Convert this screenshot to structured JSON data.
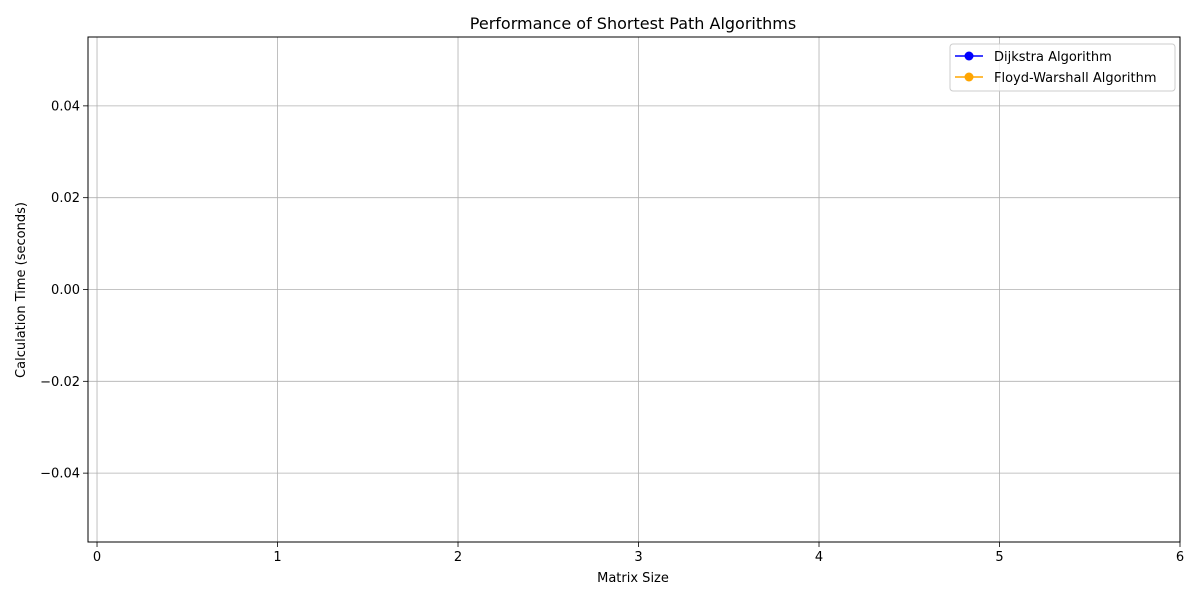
{
  "chart_data": {
    "type": "line",
    "title": "Performance of Shortest Path Algorithms",
    "xlabel": "Matrix Size",
    "ylabel": "Calculation Time (seconds)",
    "xlim": [
      -0.05,
      6
    ],
    "ylim": [
      -0.055,
      0.055
    ],
    "x_ticks": [
      0,
      1,
      2,
      3,
      4,
      5,
      6
    ],
    "x_tick_labels": [
      "0",
      "1",
      "2",
      "3",
      "4",
      "5",
      "6"
    ],
    "y_ticks": [
      -0.04,
      -0.02,
      0.0,
      0.02,
      0.04
    ],
    "y_tick_labels": [
      "−0.04",
      "−0.02",
      "0.00",
      "0.02",
      "0.04"
    ],
    "grid": true,
    "legend_position": "top-right",
    "series": [
      {
        "name": "Dijkstra Algorithm",
        "color": "#0000ff",
        "marker": "circle",
        "x": [],
        "y": []
      },
      {
        "name": "Floyd-Warshall Algorithm",
        "color": "#ffa500",
        "marker": "circle",
        "x": [],
        "y": []
      }
    ]
  }
}
